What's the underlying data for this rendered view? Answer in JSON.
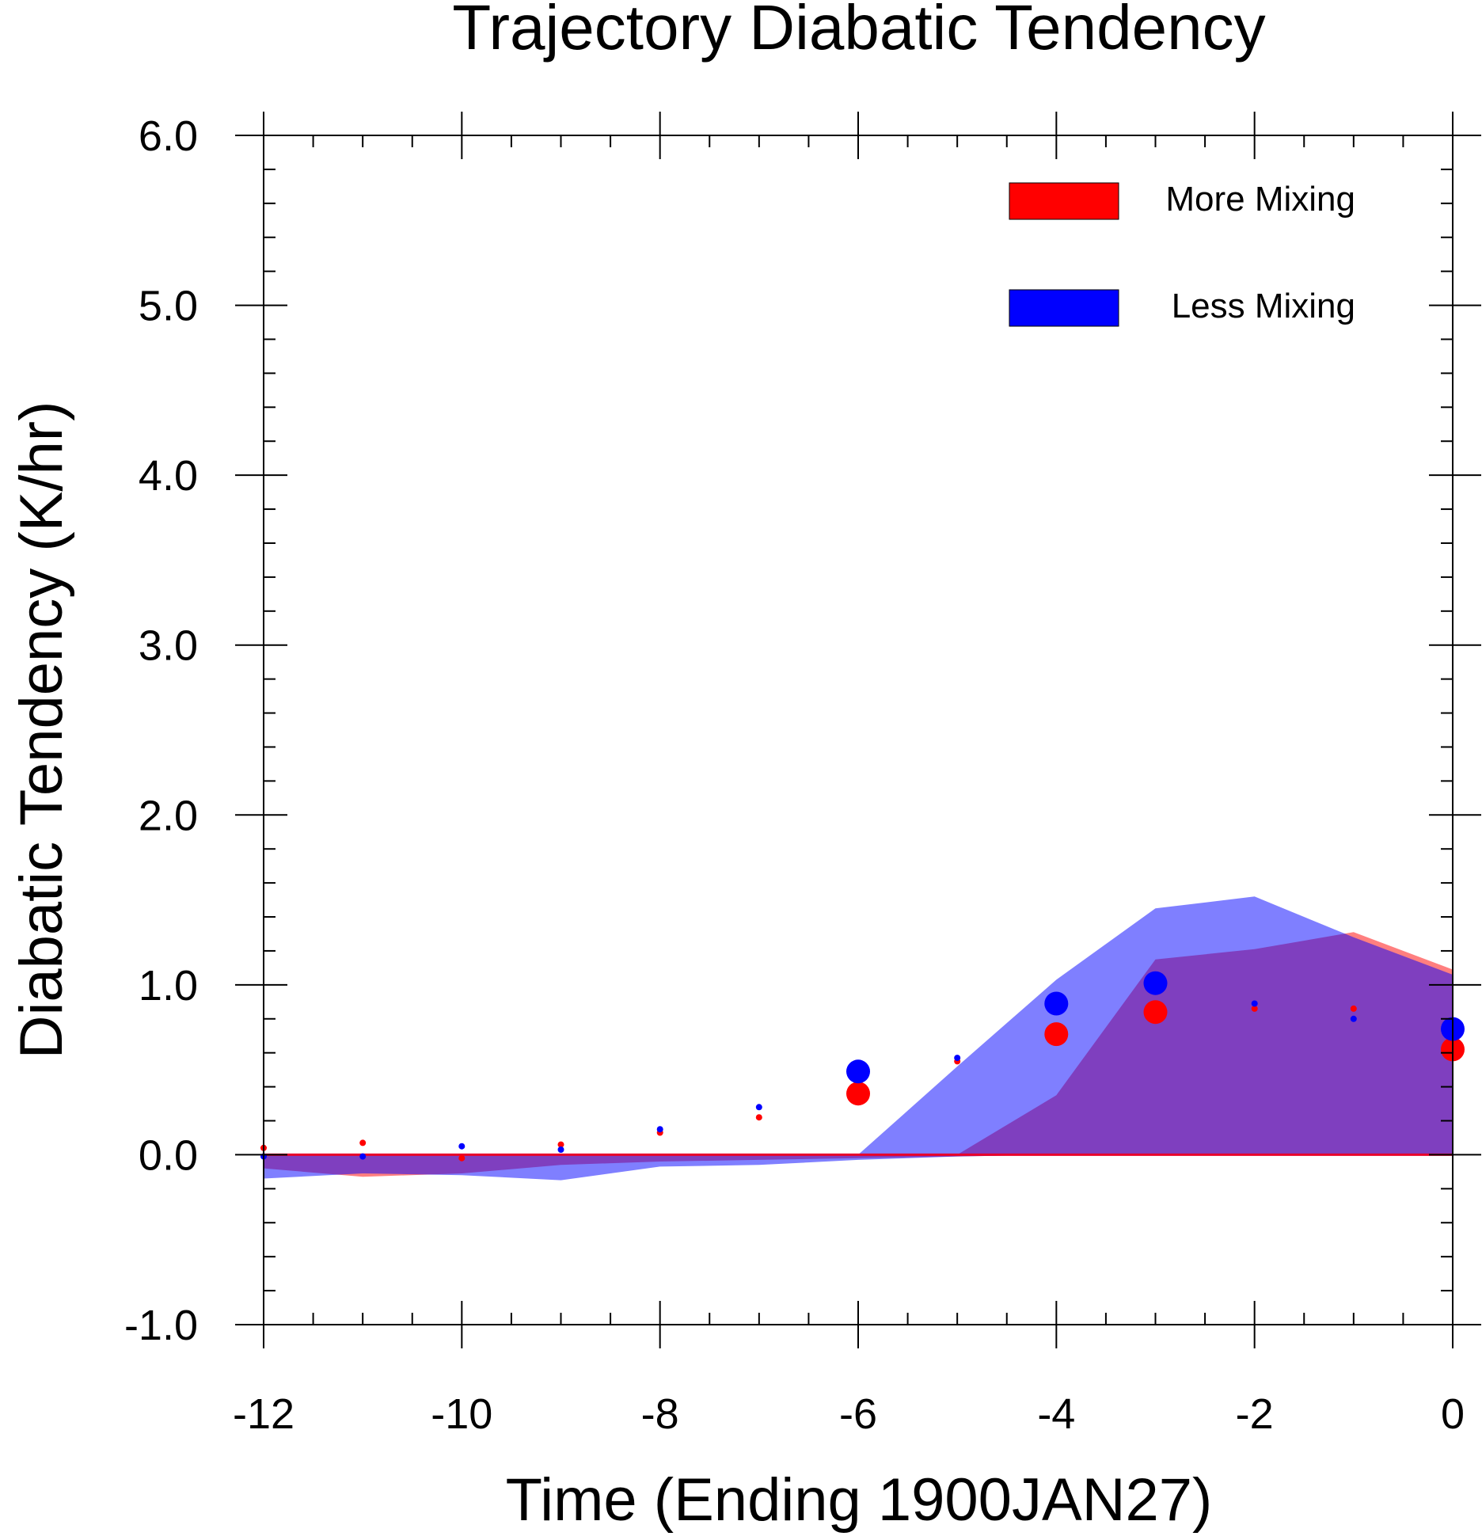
{
  "chart_data": {
    "type": "area",
    "title": "Trajectory Diabatic Tendency",
    "xlabel": "Time (Ending 1900JAN27)",
    "ylabel": "Diabatic Tendency (K/hr)",
    "xlim": [
      -12,
      0
    ],
    "ylim": [
      -1.0,
      6.0
    ],
    "x_ticks": [
      -12,
      -10,
      -8,
      -6,
      -4,
      -2,
      0
    ],
    "x_tick_labels": [
      "-12",
      "-10",
      "-8",
      "-6",
      "-4",
      "-2",
      "0"
    ],
    "y_ticks": [
      -1.0,
      0.0,
      1.0,
      2.0,
      3.0,
      4.0,
      5.0,
      6.0
    ],
    "y_tick_labels": [
      "-1.0",
      "0.0",
      "1.0",
      "2.0",
      "3.0",
      "4.0",
      "5.0",
      "6.0"
    ],
    "x_minor_step": 0.5,
    "y_minor_step": 0.2,
    "grid": false,
    "legend_position": "top-right",
    "x": [
      -12,
      -11,
      -10,
      -9,
      -8,
      -7,
      -6,
      -5,
      -4,
      -3,
      -2,
      -1,
      0
    ],
    "zero_line_color": "#e8002a",
    "series": [
      {
        "name": "More Mixing",
        "color": "#ff0000",
        "fill_color": "#ff0000",
        "fill_opacity": 0.5,
        "upper": [
          0.0,
          0.0,
          0.0,
          0.0,
          0.0,
          0.0,
          0.0,
          0.0,
          0.35,
          1.15,
          1.21,
          1.31,
          1.09
        ],
        "lower": [
          -0.08,
          -0.13,
          -0.11,
          -0.06,
          -0.04,
          -0.03,
          -0.02,
          -0.01,
          0.0,
          0.0,
          0.0,
          0.0,
          0.0
        ],
        "points": [
          0.04,
          0.07,
          -0.02,
          0.06,
          0.13,
          0.22,
          0.36,
          0.55,
          0.71,
          0.84,
          0.86,
          0.86,
          0.62
        ],
        "marker_sizes": [
          "small",
          "small",
          "small",
          "small",
          "small",
          "small",
          "large",
          "small",
          "large",
          "large",
          "small",
          "small",
          "large"
        ]
      },
      {
        "name": "Less Mixing",
        "color": "#0000ff",
        "fill_color": "#0000ff",
        "fill_opacity": 0.5,
        "upper": [
          0.0,
          0.0,
          0.0,
          0.0,
          0.0,
          0.0,
          0.0,
          0.52,
          1.03,
          1.45,
          1.52,
          1.28,
          1.06
        ],
        "lower": [
          -0.14,
          -0.11,
          -0.12,
          -0.15,
          -0.07,
          -0.06,
          -0.03,
          -0.01,
          0.0,
          0.0,
          0.0,
          0.0,
          0.0
        ],
        "points": [
          -0.01,
          -0.01,
          0.05,
          0.03,
          0.15,
          0.28,
          0.49,
          0.57,
          0.89,
          1.01,
          0.89,
          0.8,
          0.74
        ],
        "marker_sizes": [
          "small",
          "small",
          "small",
          "small",
          "small",
          "small",
          "large",
          "small",
          "large",
          "large",
          "small",
          "small",
          "large"
        ]
      }
    ]
  }
}
